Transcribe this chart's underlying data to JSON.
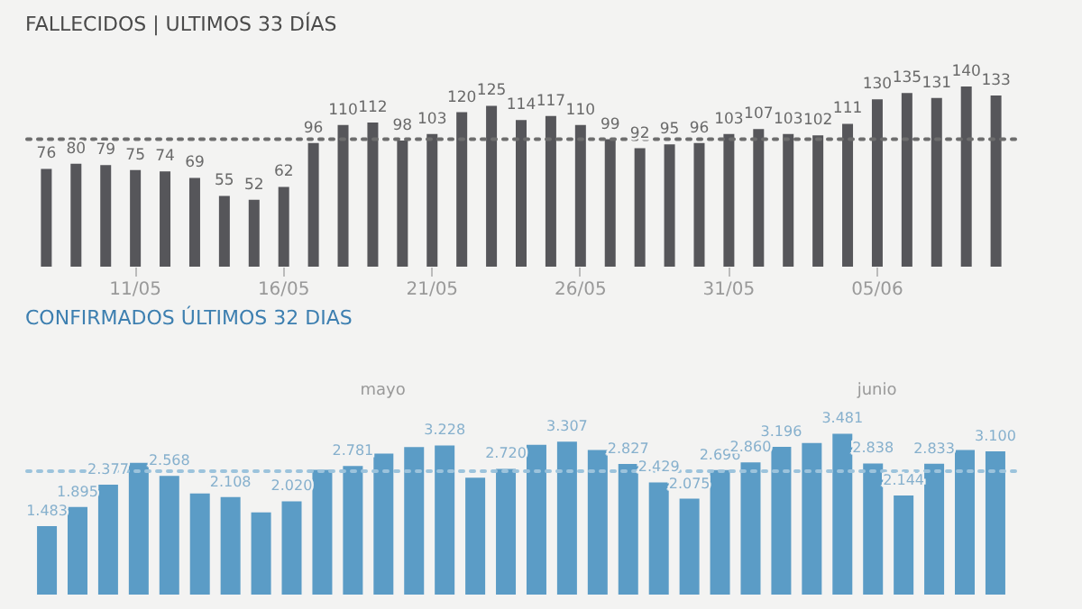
{
  "chart_data": [
    {
      "type": "bar",
      "title": "FALLECIDOS | ULTIMOS 33 DÍAS",
      "categories": [
        null,
        null,
        null,
        "11/05",
        null,
        null,
        null,
        null,
        "16/05",
        null,
        null,
        null,
        null,
        "21/05",
        null,
        null,
        null,
        null,
        "26/05",
        null,
        null,
        null,
        null,
        "31/05",
        null,
        null,
        null,
        null,
        "05/06",
        null,
        null,
        null,
        null
      ],
      "values": [
        76,
        80,
        79,
        75,
        74,
        69,
        55,
        52,
        62,
        96,
        110,
        112,
        98,
        103,
        120,
        125,
        114,
        117,
        110,
        99,
        92,
        95,
        96,
        103,
        107,
        103,
        102,
        111,
        130,
        135,
        131,
        140,
        133
      ],
      "color": "#56565a",
      "data_labels": true,
      "grid": false,
      "ref_lines": [
        {
          "axis": "y",
          "value": 99,
          "color": "#6d6d6d",
          "line_style": "dotted"
        }
      ]
    },
    {
      "type": "bar",
      "title": "CONFIRMADOS ÚLTIMOS 32 DIAS",
      "categories": [
        null,
        null,
        null,
        null,
        null,
        null,
        null,
        null,
        null,
        null,
        null,
        null,
        null,
        null,
        null,
        null,
        null,
        null,
        null,
        null,
        null,
        null,
        null,
        null,
        null,
        null,
        null,
        null,
        null,
        null,
        null,
        null
      ],
      "values": [
        1483,
        1895,
        2377,
        2850,
        2568,
        2190,
        2108,
        1780,
        2020,
        2700,
        2781,
        3050,
        3190,
        3228,
        2530,
        2720,
        3240,
        3307,
        3130,
        2827,
        2429,
        2075,
        2696,
        2860,
        3196,
        3280,
        3481,
        2838,
        2144,
        2833,
        3130,
        3100
      ],
      "value_labels": [
        "1.483",
        "1.895",
        "2.377",
        null,
        "2.568",
        null,
        "2.108",
        null,
        "2.020",
        null,
        "2.781",
        null,
        null,
        "3.228",
        null,
        "2.720",
        null,
        "3.307",
        null,
        "2.827",
        "2.429",
        "2.075",
        "2.696",
        "2.860",
        "3.196",
        null,
        "3.481",
        "2.838",
        "2.144",
        "2.833",
        null,
        "3.100"
      ],
      "color": "#5b9cc6",
      "grid": false,
      "tick_labels": false,
      "annotations": [
        "mayo",
        "junio"
      ],
      "ref_lines": [
        {
          "axis": "y",
          "value": 2670,
          "color": "#9cc3dc",
          "line_style": "dotted"
        }
      ]
    }
  ]
}
